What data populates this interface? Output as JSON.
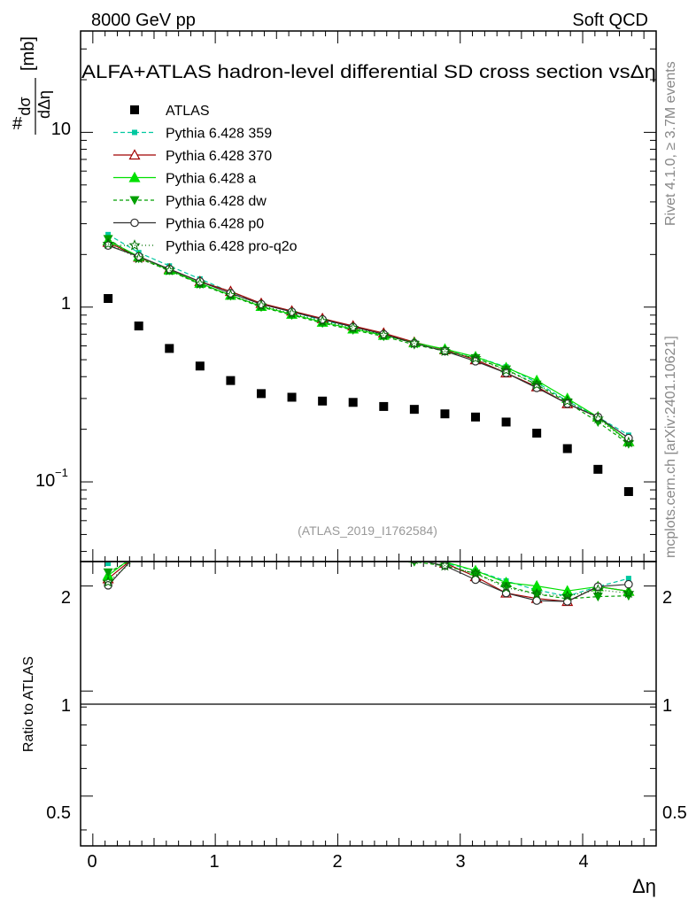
{
  "chart_data": {
    "type": "scatter",
    "header_left": "8000 GeV pp",
    "header_right": "Soft QCD",
    "title": "ALFA+ATLAS hadron-level differential SD cross section vs",
    "title_symbol": "Δη",
    "ylabel": {
      "prefix": "#",
      "num": "dσ",
      "den": "dΔη",
      "unit": "[mb]"
    },
    "xlabel": "Δη",
    "ratio_ylabel": "Ratio to ATLAS",
    "analysis_id": "(ATLAS_2019_I1762584)",
    "side_text_top": "Rivet 4.1.0, ≥ 3.7M events",
    "side_text_bottom": "mcplots.cern.ch [arXiv:2401.10621]",
    "xlim": [
      -0.1,
      4.6
    ],
    "ylim": [
      0.035,
      38
    ],
    "ratio_ylim": [
      0.36,
      2.35
    ],
    "x_ticks": [
      "0",
      "1",
      "2",
      "3",
      "4"
    ],
    "y_ticks": [
      "10",
      "1"
    ],
    "y_tick_sci": {
      "base": "10",
      "exp": "−1"
    },
    "ratio_ticks": [
      "2",
      "1",
      "0.5"
    ],
    "x": [
      0.125,
      0.375,
      0.625,
      0.875,
      1.125,
      1.375,
      1.625,
      1.875,
      2.125,
      2.375,
      2.625,
      2.875,
      3.125,
      3.375,
      3.625,
      3.875,
      4.125,
      4.375
    ],
    "data": {
      "name": "ATLAS",
      "values": [
        1.12,
        0.78,
        0.58,
        0.46,
        0.38,
        0.32,
        0.305,
        0.29,
        0.285,
        0.27,
        0.26,
        0.245,
        0.235,
        0.22,
        0.19,
        0.155,
        0.118,
        0.088
      ]
    },
    "series": [
      {
        "name": "Pythia 6.428 359",
        "color": "#00c8a0",
        "dash": "5,3",
        "marker": "square-small",
        "values": [
          2.6,
          2.05,
          1.72,
          1.45,
          1.22,
          1.05,
          0.94,
          0.84,
          0.77,
          0.7,
          0.63,
          0.57,
          0.52,
          0.455,
          0.37,
          0.29,
          0.235,
          0.185
        ]
      },
      {
        "name": "Pythia 6.428 370",
        "color": "#a00000",
        "dash": "",
        "marker": "triangle-open",
        "values": [
          2.35,
          1.93,
          1.65,
          1.4,
          1.23,
          1.05,
          0.95,
          0.86,
          0.78,
          0.71,
          0.63,
          0.57,
          0.5,
          0.42,
          0.35,
          0.28,
          0.235,
          0.17
        ]
      },
      {
        "name": "Pythia 6.428 a",
        "color": "#00e000",
        "dash": "",
        "marker": "triangle",
        "values": [
          2.4,
          1.95,
          1.63,
          1.37,
          1.17,
          1.01,
          0.91,
          0.82,
          0.75,
          0.69,
          0.625,
          0.575,
          0.52,
          0.45,
          0.38,
          0.3,
          0.235,
          0.17
        ]
      },
      {
        "name": "Pythia 6.428 dw",
        "color": "#00a000",
        "dash": "4,3",
        "marker": "triangle-down",
        "values": [
          2.45,
          1.9,
          1.62,
          1.35,
          1.16,
          1.0,
          0.9,
          0.81,
          0.74,
          0.68,
          0.61,
          0.56,
          0.51,
          0.44,
          0.36,
          0.285,
          0.22,
          0.165
        ]
      },
      {
        "name": "Pythia 6.428 p0",
        "color": "#303030",
        "dash": "",
        "marker": "circle-open",
        "values": [
          2.25,
          1.95,
          1.65,
          1.4,
          1.2,
          1.04,
          0.94,
          0.85,
          0.77,
          0.7,
          0.62,
          0.56,
          0.49,
          0.42,
          0.345,
          0.28,
          0.235,
          0.178
        ]
      },
      {
        "name": "Pythia 6.428 pro-q2o",
        "color": "#007000",
        "dash": "1,3",
        "marker": "star",
        "values": [
          2.3,
          1.9,
          1.62,
          1.36,
          1.17,
          1.02,
          0.92,
          0.83,
          0.76,
          0.69,
          0.62,
          0.56,
          0.51,
          0.435,
          0.36,
          0.29,
          0.23,
          0.168
        ]
      }
    ]
  }
}
